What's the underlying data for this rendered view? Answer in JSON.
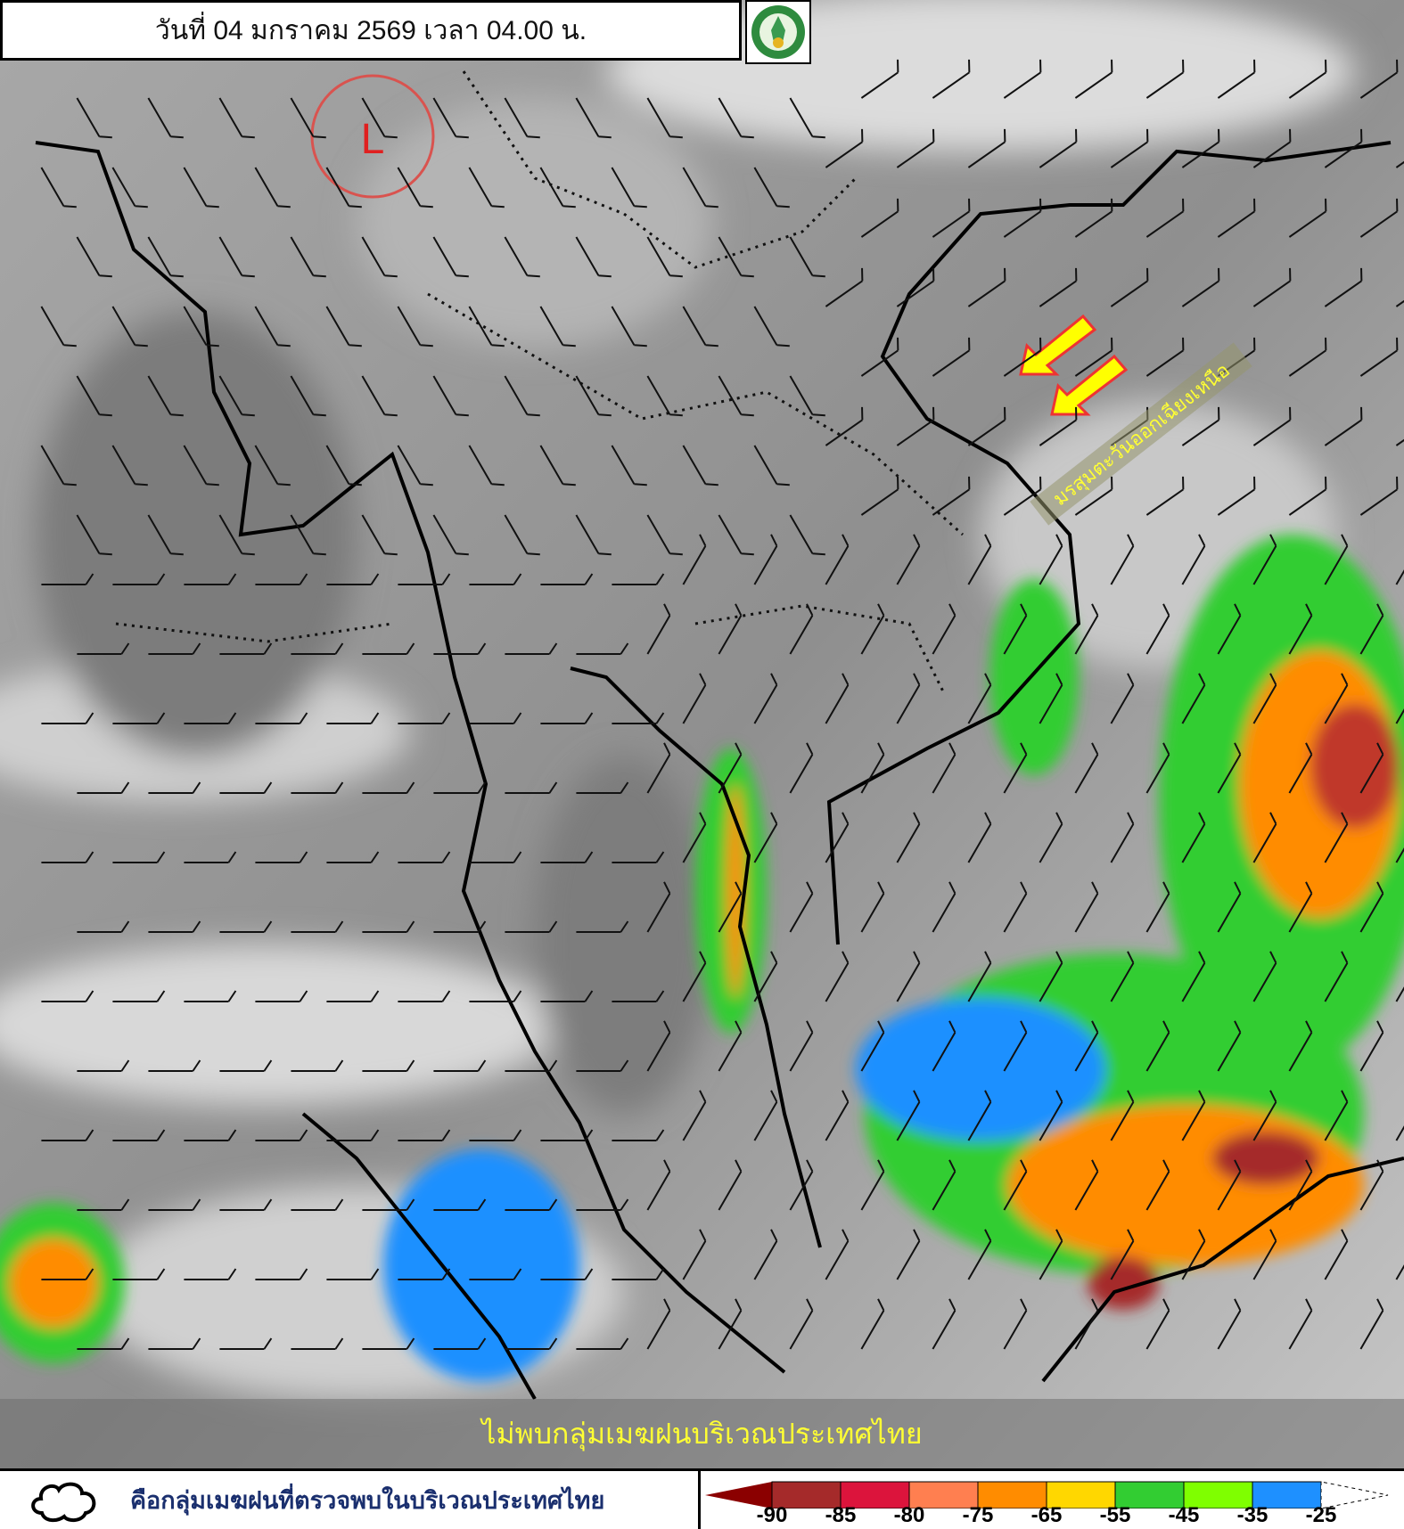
{
  "header": {
    "title": "วันที่ 04 มกราคม 2569 เวลา 04.00 น."
  },
  "logo": {
    "icon": "meteorological-department-logo-icon"
  },
  "map": {
    "low_pressure_label": "L",
    "monsoon_label": "มรสุมตะวันออกเฉียงเหนือ",
    "banner_text": "ไม่พบกลุ่มเมฆฝนบริเวณประเทศไทย",
    "arrow_color": "#ffff00",
    "low_circle_color": "#d9534f"
  },
  "legend": {
    "cloud_icon": "cloud-outline-icon",
    "cloud_text": "คือกลุ่มเมฆฝนที่ตรวจพบในบริเวณประเทศไทย",
    "scale_colors": [
      "#8b0000",
      "#a52a2a",
      "#dc143c",
      "#ff7f50",
      "#ff8c00",
      "#ffd700",
      "#32cd32",
      "#7fff00",
      "#1e90ff",
      "#ffffff"
    ],
    "scale_labels": [
      "-90",
      "-85",
      "-80",
      "-75",
      "-65",
      "-55",
      "-45",
      "-35",
      "-25"
    ]
  }
}
